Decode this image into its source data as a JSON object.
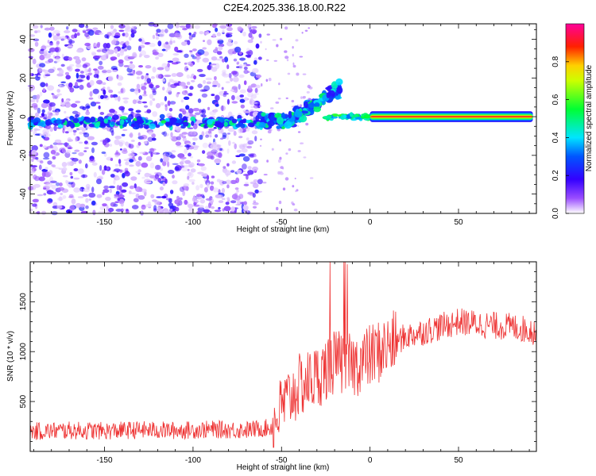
{
  "title": "C2E4.2025.336.18.00.R22",
  "chart_data": [
    {
      "type": "heatmap",
      "xlabel": "Height of straight line (km)",
      "ylabel": "Frequency (Hz)",
      "xlim": [
        -192,
        94
      ],
      "ylim": [
        -50,
        48
      ],
      "xticks": [
        -150,
        -100,
        -50,
        0,
        50
      ],
      "yticks": [
        -40,
        -20,
        0,
        20,
        40
      ],
      "colorbar": {
        "label": "Normalized spectral amplitude",
        "range": [
          0,
          1
        ],
        "ticks": [
          0.0,
          0.2,
          0.4,
          0.6,
          0.8
        ],
        "tick_labels": [
          "0.0",
          "0.2",
          "0.4",
          "0.6",
          "0.8"
        ],
        "colormap": [
          "#ffffff",
          "#7f00ff",
          "#0000ff",
          "#00ffff",
          "#00ff00",
          "#ffff00",
          "#ff0000",
          "#ff00ff"
        ]
      },
      "features": [
        {
          "name": "noise field",
          "x_range": [
            -192,
            -62
          ],
          "freq_range": [
            -50,
            48
          ],
          "amplitude": 0.15
        },
        {
          "name": "main band",
          "x_range": [
            -192,
            94
          ],
          "freq_center": -3,
          "amplitude": 0.35
        },
        {
          "name": "rising branch",
          "x_range": [
            -60,
            -20
          ],
          "freq_range": [
            -2,
            22
          ],
          "amplitude": 0.5
        },
        {
          "name": "tone",
          "x_range": [
            0,
            92
          ],
          "freq_center": 0,
          "amplitude": 1.0
        }
      ]
    },
    {
      "type": "line",
      "xlabel": "Height of straight line (km)",
      "ylabel": "SNR (10 * v/v)",
      "xlim": [
        -192,
        94
      ],
      "ylim": [
        0,
        1900
      ],
      "xticks": [
        -150,
        -100,
        -50,
        0,
        50
      ],
      "yticks": [
        500,
        1000,
        1500
      ],
      "color": "#ee3333",
      "series": [
        {
          "name": "SNR",
          "x": [
            -192,
            -170,
            -150,
            -130,
            -110,
            -90,
            -70,
            -55,
            -50,
            -40,
            -30,
            -20,
            -10,
            0,
            10,
            20,
            30,
            40,
            50,
            60,
            70,
            80,
            94
          ],
          "values": [
            200,
            210,
            205,
            215,
            210,
            220,
            215,
            240,
            450,
            650,
            750,
            900,
            850,
            950,
            1050,
            1150,
            1200,
            1250,
            1300,
            1280,
            1260,
            1250,
            1200
          ]
        }
      ]
    }
  ]
}
